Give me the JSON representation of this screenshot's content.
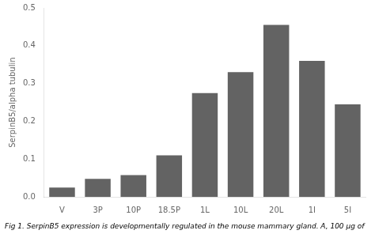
{
  "chart_data": {
    "type": "bar",
    "title": "Fig 1. SerpinB5 expression is developmentally regulated in the mouse mammary gland. A, 100 μg of",
    "categories": [
      "V",
      "3P",
      "10P",
      "18.5P",
      "1L",
      "10L",
      "20L",
      "1I",
      "5I"
    ],
    "values": [
      0.025,
      0.048,
      0.058,
      0.11,
      0.275,
      0.33,
      0.455,
      0.36,
      0.245
    ],
    "color": "#636363",
    "ylabel": "SerpinB5/alpha tubulin",
    "ylim": [
      0,
      0.5
    ],
    "yticks": [
      {
        "value": 0,
        "label": "0.0"
      },
      0.1,
      0.2,
      0.3,
      0.4,
      0.5
    ],
    "grid": false
  }
}
